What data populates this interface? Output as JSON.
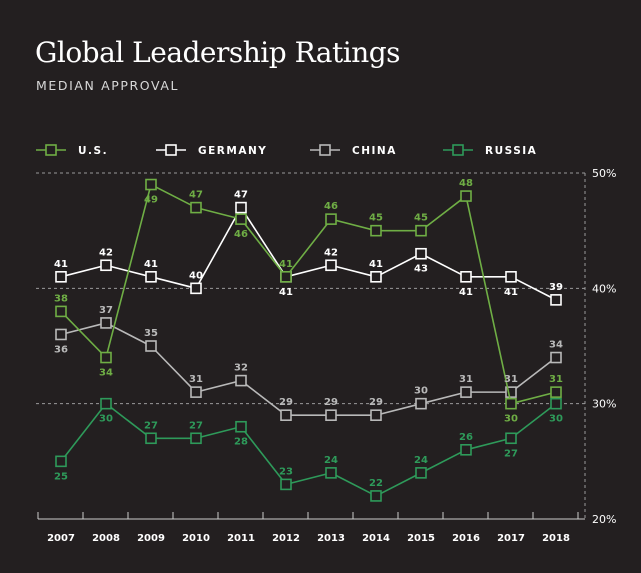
{
  "colors": {
    "background": "#231f20",
    "us": "#6fae45",
    "germany": "#ffffff",
    "china": "#b9b9b9",
    "russia": "#2e9a5a",
    "axis": "#cccccc"
  },
  "chart_data": {
    "type": "line",
    "title": "Global Leadership Ratings",
    "subtitle": "MEDIAN APPROVAL",
    "categories": [
      "2007",
      "2008",
      "2009",
      "2010",
      "2011",
      "2012",
      "2013",
      "2014",
      "2015",
      "2016",
      "2017",
      "2018"
    ],
    "ylim": [
      20,
      50
    ],
    "yticks": [
      20,
      30,
      40,
      50
    ],
    "ytick_labels": [
      "20%",
      "30%",
      "40%",
      "50%"
    ],
    "gridlines": [
      30,
      40,
      50
    ],
    "legend_position": "top",
    "series": [
      {
        "name": "U.S.",
        "key": "us",
        "values": [
          38,
          34,
          49,
          47,
          46,
          41,
          46,
          45,
          45,
          48,
          30,
          31
        ],
        "label_pos": [
          "above",
          "below",
          "below",
          "above",
          "below",
          "above",
          "above",
          "above",
          "above",
          "above",
          "below",
          "above"
        ]
      },
      {
        "name": "GERMANY",
        "key": "germany",
        "values": [
          41,
          42,
          41,
          40,
          47,
          41,
          42,
          41,
          43,
          41,
          41,
          39
        ],
        "label_pos": [
          "above",
          "above",
          "above",
          "above",
          "above",
          "below",
          "above",
          "above",
          "below",
          "below",
          "below",
          "above"
        ]
      },
      {
        "name": "CHINA",
        "key": "china",
        "values": [
          36,
          37,
          35,
          31,
          32,
          29,
          29,
          29,
          30,
          31,
          31,
          34
        ],
        "label_pos": [
          "below",
          "above",
          "above",
          "above",
          "above",
          "above",
          "above",
          "above",
          "above",
          "above",
          "above",
          "above"
        ]
      },
      {
        "name": "RUSSIA",
        "key": "russia",
        "values": [
          25,
          30,
          27,
          27,
          28,
          23,
          24,
          22,
          24,
          26,
          27,
          30
        ],
        "label_pos": [
          "below",
          "below",
          "above",
          "above",
          "below",
          "above",
          "above",
          "above",
          "above",
          "above",
          "below",
          "below"
        ]
      }
    ]
  }
}
